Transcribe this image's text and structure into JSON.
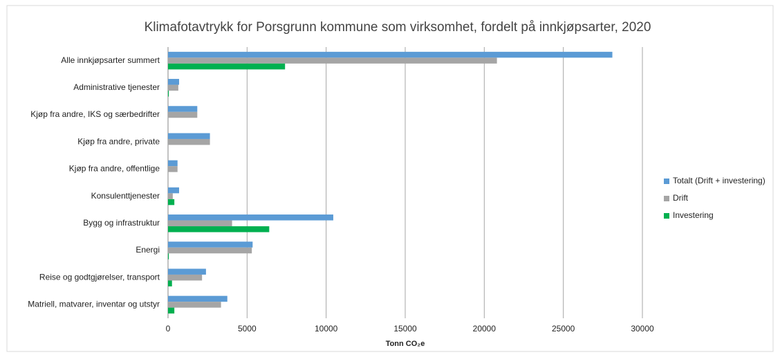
{
  "chart_data": {
    "type": "hbar",
    "title": "Klimafotavtrykk for Porsgrunn kommune som virksomhet, fordelt på innkjøpsarter, 2020",
    "x_label": "Tonn CO₂e",
    "categories": [
      "Alle innkjøpsarter summert",
      "Administrative tjenester",
      "Kjøp fra andre, IKS og særbedrifter",
      "Kjøp fra andre, private",
      "Kjøp fra andre, offentlige",
      "Konsulenttjenester",
      "Bygg og infrastruktur",
      "Energi",
      "Reise og godtgjørelser, transport",
      "Matriell, matvarer, inventar og utstyr"
    ],
    "series": [
      {
        "name": "Totalt (Drift + investering)",
        "color": "#5b9bd5",
        "values": [
          28100,
          700,
          1850,
          2650,
          600,
          700,
          10450,
          5350,
          2400,
          3750
        ]
      },
      {
        "name": "Drift",
        "color": "#a5a5a5",
        "values": [
          20800,
          650,
          1850,
          2650,
          600,
          300,
          4050,
          5300,
          2150,
          3350
        ]
      },
      {
        "name": "Investering",
        "color": "#00b050",
        "values": [
          7400,
          50,
          0,
          0,
          0,
          400,
          6400,
          50,
          250,
          400
        ]
      }
    ],
    "xlim": [
      0,
      30000
    ],
    "xticks": [
      0,
      5000,
      10000,
      15000,
      20000,
      25000,
      30000
    ],
    "grid": true,
    "legend": "right"
  }
}
